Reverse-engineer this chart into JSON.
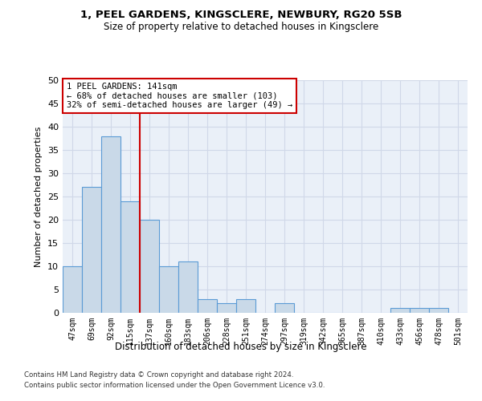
{
  "title1": "1, PEEL GARDENS, KINGSCLERE, NEWBURY, RG20 5SB",
  "title2": "Size of property relative to detached houses in Kingsclere",
  "xlabel": "Distribution of detached houses by size in Kingsclere",
  "ylabel": "Number of detached properties",
  "categories": [
    "47sqm",
    "69sqm",
    "92sqm",
    "115sqm",
    "137sqm",
    "160sqm",
    "183sqm",
    "206sqm",
    "228sqm",
    "251sqm",
    "274sqm",
    "297sqm",
    "319sqm",
    "342sqm",
    "365sqm",
    "387sqm",
    "410sqm",
    "433sqm",
    "456sqm",
    "478sqm",
    "501sqm"
  ],
  "values": [
    10,
    27,
    38,
    24,
    20,
    10,
    11,
    3,
    2,
    3,
    0,
    2,
    0,
    0,
    0,
    0,
    0,
    1,
    1,
    1,
    0
  ],
  "bar_color": "#c9d9e8",
  "bar_edge_color": "#5b9bd5",
  "highlight_color": "#cc0000",
  "annotation_text": "1 PEEL GARDENS: 141sqm\n← 68% of detached houses are smaller (103)\n32% of semi-detached houses are larger (49) →",
  "annotation_box_color": "white",
  "annotation_box_edge": "#cc0000",
  "footnote1": "Contains HM Land Registry data © Crown copyright and database right 2024.",
  "footnote2": "Contains public sector information licensed under the Open Government Licence v3.0.",
  "ylim": [
    0,
    50
  ],
  "yticks": [
    0,
    5,
    10,
    15,
    20,
    25,
    30,
    35,
    40,
    45,
    50
  ],
  "grid_color": "#d0d8e8",
  "background_color": "#eaf0f8"
}
